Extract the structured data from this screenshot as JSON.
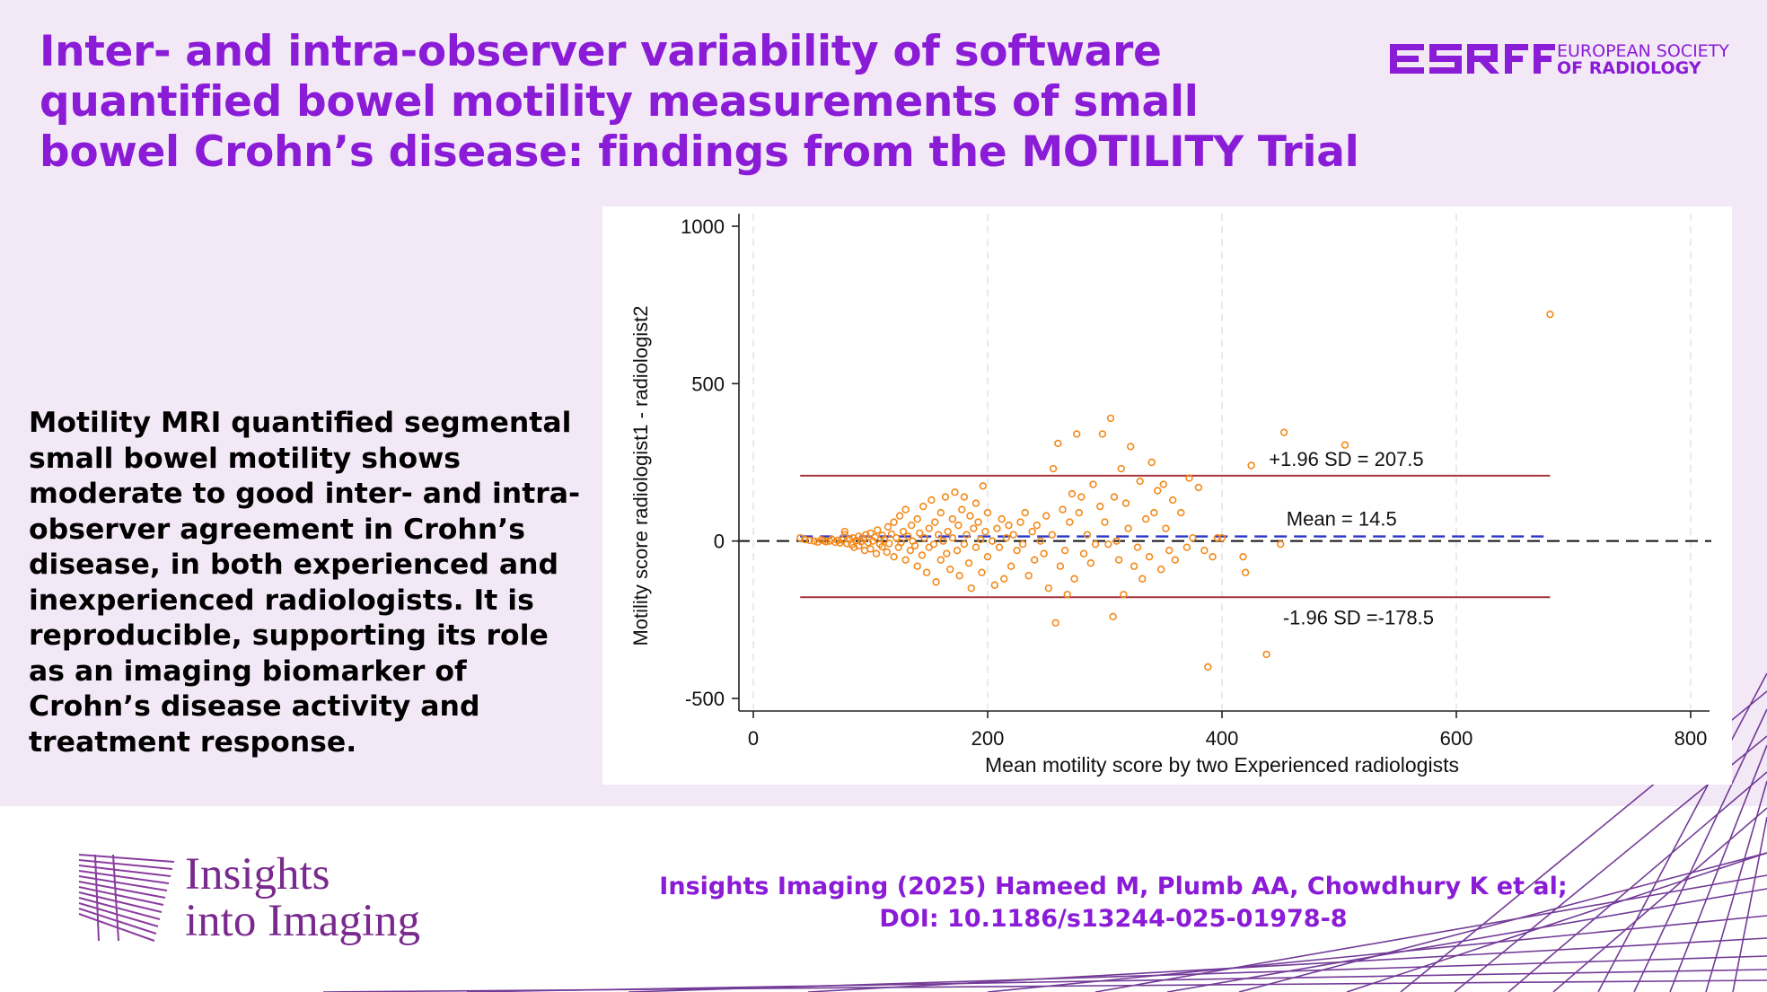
{
  "title_lines": [
    "Inter- and intra-observer variability of software",
    "quantified bowel motility measurements of small",
    "bowel Crohn’s disease: findings from the MOTILITY Trial"
  ],
  "society": {
    "acronym": "ESR",
    "name_line1": "EUROPEAN SOCIETY",
    "name_line2": "OF RADIOLOGY"
  },
  "summary_lines": [
    "Motility MRI quantified segmental",
    "small bowel motility shows",
    "moderate to good inter- and intra-",
    "observer agreement in Crohn’s",
    "disease, in both experienced and",
    "inexperienced radiologists. It is",
    "reproducible, supporting its role",
    "as an imaging biomarker of",
    "Crohn’s disease activity and",
    "treatment response."
  ],
  "journal": {
    "line1": "Insights",
    "line2": "into Imaging"
  },
  "citation": {
    "line1": "Insights Imaging (2025) Hameed M, Plumb AA, Chowdhury K et al;",
    "line2": "DOI: 10.1186/s13244-025-01978-8"
  },
  "colors": {
    "accent": "#8a1bd6",
    "background": "#f3e9f6",
    "points": "#f28a1c",
    "limit_lines": "#a4343a",
    "mean_line": "#2b35c8"
  },
  "chart_data": {
    "type": "scatter",
    "xlabel": "Mean motility score by two Experienced radiologists",
    "ylabel": "Motility score radiologist1 - radiologist2",
    "xlim": [
      0,
      800
    ],
    "ylim": [
      -500,
      1000
    ],
    "xticks": [
      0,
      200,
      400,
      600,
      800
    ],
    "yticks": [
      -500,
      0,
      500,
      1000
    ],
    "grid": "vertical dashed",
    "reference_lines": [
      {
        "label": "+1.96 SD = 207.5",
        "value": 207.5,
        "style": "solid"
      },
      {
        "label": "Mean = 14.5",
        "value": 14.5,
        "style": "dashed"
      },
      {
        "label": "-1.96 SD =-178.5",
        "value": -178.5,
        "style": "solid"
      },
      {
        "label": "",
        "value": 0,
        "style": "dashed"
      }
    ],
    "points": [
      [
        40,
        10
      ],
      [
        44,
        5
      ],
      [
        48,
        2
      ],
      [
        52,
        0
      ],
      [
        55,
        -3
      ],
      [
        58,
        4
      ],
      [
        60,
        1
      ],
      [
        62,
        -2
      ],
      [
        65,
        0
      ],
      [
        67,
        6
      ],
      [
        70,
        -4
      ],
      [
        72,
        2
      ],
      [
        74,
        -6
      ],
      [
        76,
        3
      ],
      [
        78,
        30
      ],
      [
        78,
        20
      ],
      [
        80,
        -8
      ],
      [
        82,
        5
      ],
      [
        84,
        -12
      ],
      [
        85,
        10
      ],
      [
        86,
        -20
      ],
      [
        88,
        2
      ],
      [
        90,
        -15
      ],
      [
        90,
        15
      ],
      [
        92,
        -2
      ],
      [
        94,
        8
      ],
      [
        95,
        -30
      ],
      [
        96,
        20
      ],
      [
        98,
        -5
      ],
      [
        100,
        25
      ],
      [
        100,
        -25
      ],
      [
        102,
        0
      ],
      [
        104,
        12
      ],
      [
        105,
        -40
      ],
      [
        106,
        35
      ],
      [
        108,
        -10
      ],
      [
        110,
        18
      ],
      [
        110,
        -18
      ],
      [
        112,
        5
      ],
      [
        114,
        -35
      ],
      [
        115,
        45
      ],
      [
        116,
        -8
      ],
      [
        118,
        22
      ],
      [
        120,
        -50
      ],
      [
        120,
        60
      ],
      [
        122,
        10
      ],
      [
        124,
        -20
      ],
      [
        125,
        80
      ],
      [
        126,
        -5
      ],
      [
        128,
        30
      ],
      [
        130,
        -60
      ],
      [
        130,
        100
      ],
      [
        132,
        15
      ],
      [
        134,
        -30
      ],
      [
        135,
        50
      ],
      [
        136,
        0
      ],
      [
        138,
        -15
      ],
      [
        140,
        70
      ],
      [
        140,
        -80
      ],
      [
        142,
        25
      ],
      [
        144,
        -45
      ],
      [
        145,
        110
      ],
      [
        146,
        10
      ],
      [
        148,
        -100
      ],
      [
        150,
        40
      ],
      [
        150,
        -20
      ],
      [
        152,
        130
      ],
      [
        154,
        -10
      ],
      [
        155,
        60
      ],
      [
        156,
        -130
      ],
      [
        158,
        20
      ],
      [
        160,
        90
      ],
      [
        160,
        -60
      ],
      [
        162,
        0
      ],
      [
        164,
        140
      ],
      [
        165,
        -40
      ],
      [
        166,
        30
      ],
      [
        168,
        -90
      ],
      [
        170,
        70
      ],
      [
        170,
        10
      ],
      [
        172,
        155
      ],
      [
        174,
        -30
      ],
      [
        175,
        50
      ],
      [
        176,
        -110
      ],
      [
        178,
        100
      ],
      [
        180,
        -10
      ],
      [
        180,
        140
      ],
      [
        182,
        20
      ],
      [
        184,
        -70
      ],
      [
        185,
        80
      ],
      [
        186,
        -150
      ],
      [
        188,
        40
      ],
      [
        190,
        120
      ],
      [
        190,
        -20
      ],
      [
        192,
        60
      ],
      [
        194,
        5
      ],
      [
        195,
        -100
      ],
      [
        196,
        175
      ],
      [
        198,
        30
      ],
      [
        200,
        -50
      ],
      [
        200,
        90
      ],
      [
        204,
        0
      ],
      [
        206,
        -140
      ],
      [
        208,
        40
      ],
      [
        210,
        -20
      ],
      [
        212,
        70
      ],
      [
        214,
        -120
      ],
      [
        216,
        10
      ],
      [
        218,
        50
      ],
      [
        220,
        -80
      ],
      [
        222,
        20
      ],
      [
        225,
        -30
      ],
      [
        228,
        60
      ],
      [
        230,
        -10
      ],
      [
        232,
        90
      ],
      [
        235,
        -110
      ],
      [
        238,
        30
      ],
      [
        240,
        -60
      ],
      [
        242,
        50
      ],
      [
        245,
        0
      ],
      [
        248,
        -40
      ],
      [
        250,
        80
      ],
      [
        252,
        -150
      ],
      [
        255,
        20
      ],
      [
        256,
        230
      ],
      [
        258,
        -260
      ],
      [
        260,
        310
      ],
      [
        262,
        -80
      ],
      [
        264,
        100
      ],
      [
        266,
        -30
      ],
      [
        268,
        -170
      ],
      [
        270,
        60
      ],
      [
        272,
        150
      ],
      [
        274,
        -120
      ],
      [
        276,
        340
      ],
      [
        278,
        90
      ],
      [
        280,
        140
      ],
      [
        282,
        -40
      ],
      [
        285,
        20
      ],
      [
        288,
        -70
      ],
      [
        290,
        180
      ],
      [
        292,
        -10
      ],
      [
        296,
        110
      ],
      [
        298,
        340
      ],
      [
        300,
        60
      ],
      [
        303,
        -10
      ],
      [
        305,
        390
      ],
      [
        307,
        -240
      ],
      [
        308,
        140
      ],
      [
        310,
        0
      ],
      [
        312,
        -60
      ],
      [
        314,
        230
      ],
      [
        316,
        -170
      ],
      [
        318,
        120
      ],
      [
        320,
        40
      ],
      [
        322,
        300
      ],
      [
        325,
        -80
      ],
      [
        328,
        -20
      ],
      [
        330,
        190
      ],
      [
        332,
        -120
      ],
      [
        335,
        70
      ],
      [
        338,
        -50
      ],
      [
        340,
        250
      ],
      [
        342,
        90
      ],
      [
        345,
        160
      ],
      [
        348,
        -90
      ],
      [
        350,
        180
      ],
      [
        352,
        40
      ],
      [
        355,
        -30
      ],
      [
        358,
        130
      ],
      [
        360,
        -60
      ],
      [
        365,
        90
      ],
      [
        370,
        -20
      ],
      [
        372,
        200
      ],
      [
        375,
        10
      ],
      [
        380,
        170
      ],
      [
        385,
        -30
      ],
      [
        388,
        -400
      ],
      [
        392,
        -50
      ],
      [
        396,
        10
      ],
      [
        400,
        10
      ],
      [
        418,
        -50
      ],
      [
        420,
        -100
      ],
      [
        425,
        240
      ],
      [
        438,
        -360
      ],
      [
        450,
        -10
      ],
      [
        453,
        345
      ],
      [
        505,
        305
      ],
      [
        680,
        720
      ]
    ]
  }
}
